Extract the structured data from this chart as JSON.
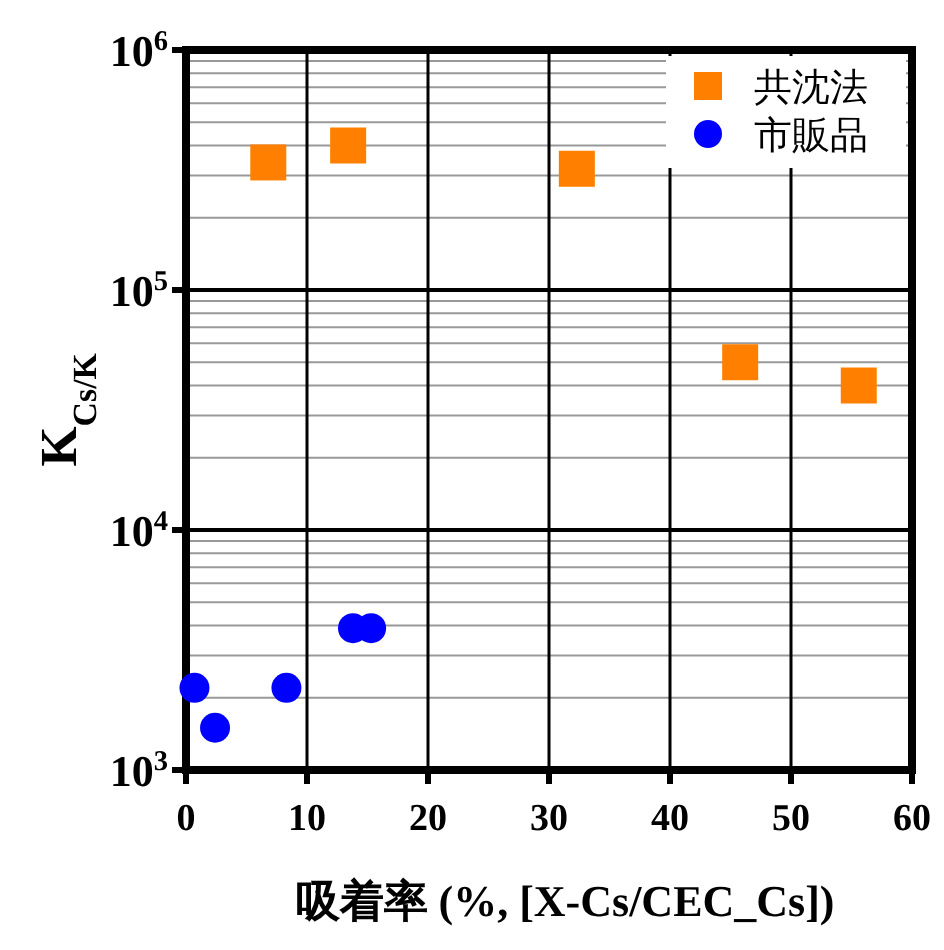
{
  "chart_data": {
    "type": "scatter",
    "xlabel": "吸着率 (%, [X-Cs/CEC_Cs])",
    "ylabel": "K$_{Cs/K}$",
    "log": "y",
    "grid": true,
    "legend": "top right",
    "xlim": [
      0,
      60
    ],
    "xticks": [
      0,
      10,
      20,
      30,
      40,
      50,
      60
    ],
    "ylim": [
      1000,
      1000000
    ],
    "yticks": [
      {
        "value": 1000,
        "label": "10$^{3}$"
      },
      {
        "value": 10000,
        "label": "10$^{4}$"
      },
      {
        "value": 100000,
        "label": "10$^{5}$"
      },
      {
        "value": 1000000,
        "label": "10$^{6}$"
      }
    ],
    "series": [
      {
        "name": "共沈法",
        "color": "#ff8000",
        "marker": "square",
        "x": [
          6.8,
          13.4,
          32.3,
          45.8,
          55.6
        ],
        "values": [
          340000,
          400000,
          320000,
          50000,
          40000
        ]
      },
      {
        "name": "市販品",
        "color": "#0000ff",
        "marker": "circle",
        "x": [
          0.7,
          2.4,
          8.3,
          13.8,
          15.3
        ],
        "values": [
          2200,
          1500,
          2200,
          3900,
          3900
        ]
      }
    ]
  }
}
